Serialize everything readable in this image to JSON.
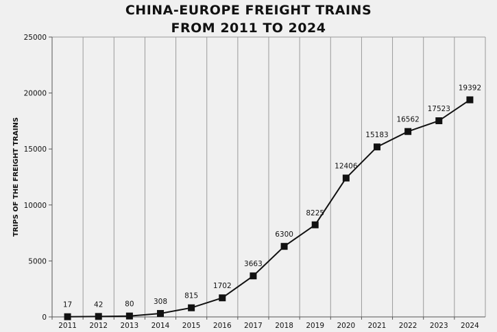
{
  "chart_data": {
    "type": "line",
    "title_lines": [
      "CHINA-EUROPE FREIGHT TRAINS",
      "FROM 2011 TO 2024"
    ],
    "xlabel": "",
    "ylabel": "TRIPS OF THE FREIGHT TRAINS",
    "ylim": [
      0,
      25000
    ],
    "yticks": [
      "0",
      "5000",
      "10000",
      "15000",
      "20000",
      "25000"
    ],
    "grid": "vertical",
    "legend": "none",
    "categories": [
      "2011",
      "2012",
      "2013",
      "2014",
      "2015",
      "2016",
      "2017",
      "2018",
      "2019",
      "2020",
      "2021",
      "2022",
      "2023",
      "2024"
    ],
    "series": [
      {
        "values": [
          17,
          42,
          80,
          308,
          815,
          1702,
          3663,
          6300,
          8225,
          12406,
          15183,
          16562,
          17523,
          19392
        ],
        "labels": [
          "17",
          "42",
          "80",
          "308",
          "815",
          "1702",
          "3663",
          "6300",
          "8225",
          "12406",
          "15183",
          "16562",
          "17523",
          "19392"
        ],
        "color": "#111111",
        "marker": "square"
      }
    ]
  }
}
